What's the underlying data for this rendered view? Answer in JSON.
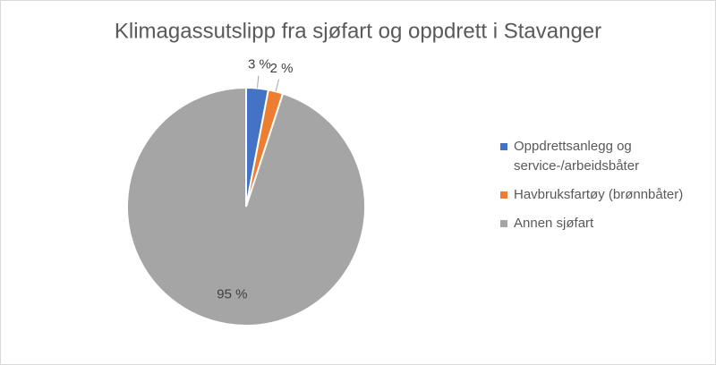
{
  "chart_data": {
    "type": "pie",
    "title": "Klimagassutslipp fra sjøfart og oppdrett i Stavanger",
    "categories": [
      "Oppdrettsanlegg og service-/arbeidsbåter",
      "Havbruksfartøy (brønnbåter)",
      "Annen sjøfart"
    ],
    "values": [
      3,
      2,
      95
    ],
    "value_labels": [
      "3 %",
      "2 %",
      "95 %"
    ],
    "colors": [
      "#4472c4",
      "#ed7d31",
      "#a5a5a5"
    ],
    "legend": "right"
  }
}
